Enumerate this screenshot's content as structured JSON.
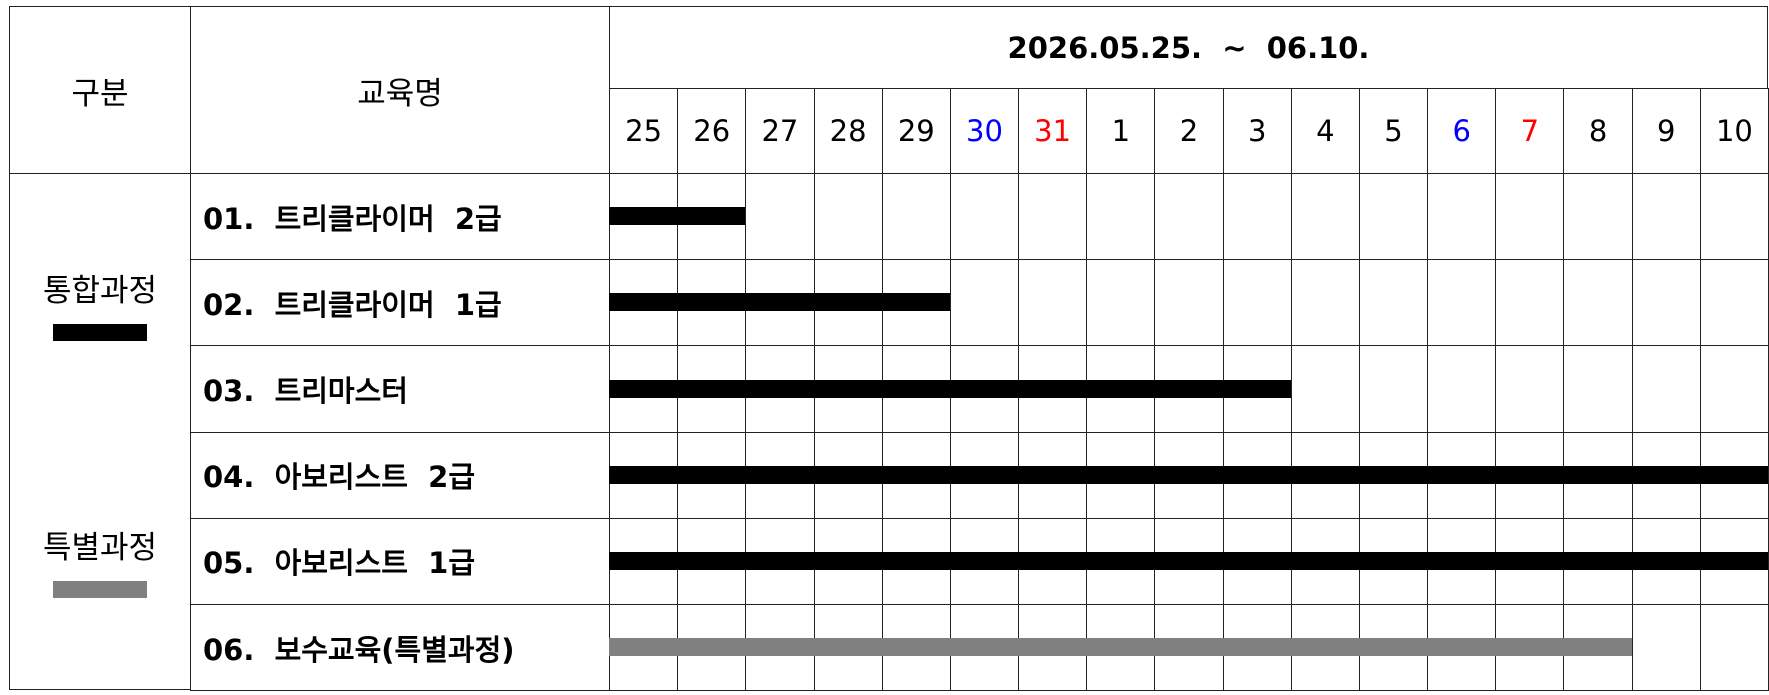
{
  "header": {
    "category_label": "구분",
    "course_label": "교육명",
    "period": "2026.05.25.  ~  06.10."
  },
  "days": [
    {
      "label": "25",
      "color": "#000000"
    },
    {
      "label": "26",
      "color": "#000000"
    },
    {
      "label": "27",
      "color": "#000000"
    },
    {
      "label": "28",
      "color": "#000000"
    },
    {
      "label": "29",
      "color": "#000000"
    },
    {
      "label": "30",
      "color": "#0000ff"
    },
    {
      "label": "31",
      "color": "#ff0000"
    },
    {
      "label": "1",
      "color": "#000000"
    },
    {
      "label": "2",
      "color": "#000000"
    },
    {
      "label": "3",
      "color": "#000000"
    },
    {
      "label": "4",
      "color": "#000000"
    },
    {
      "label": "5",
      "color": "#000000"
    },
    {
      "label": "6",
      "color": "#0000ff"
    },
    {
      "label": "7",
      "color": "#ff0000"
    },
    {
      "label": "8",
      "color": "#000000"
    },
    {
      "label": "9",
      "color": "#000000"
    },
    {
      "label": "10",
      "color": "#000000"
    }
  ],
  "categories": [
    {
      "label": "통합과정",
      "legend_color": "#000000"
    },
    {
      "label": "특별과정",
      "legend_color": "#808080"
    }
  ],
  "courses": [
    {
      "name": "01.  트리클라이머  2급",
      "category": 0,
      "start": "25",
      "end": "26"
    },
    {
      "name": "02.  트리클라이머  1급",
      "category": 0,
      "start": "25",
      "end": "29"
    },
    {
      "name": "03.  트리마스터",
      "category": 0,
      "start": "25",
      "end": "3"
    },
    {
      "name": "04.  아보리스트  2급",
      "category": 0,
      "start": "25",
      "end": "10"
    },
    {
      "name": "05.  아보리스트  1급",
      "category": 0,
      "start": "25",
      "end": "10"
    },
    {
      "name": "06.  보수교육(특별과정)",
      "category": 1,
      "start": "25",
      "end": "8"
    }
  ]
}
